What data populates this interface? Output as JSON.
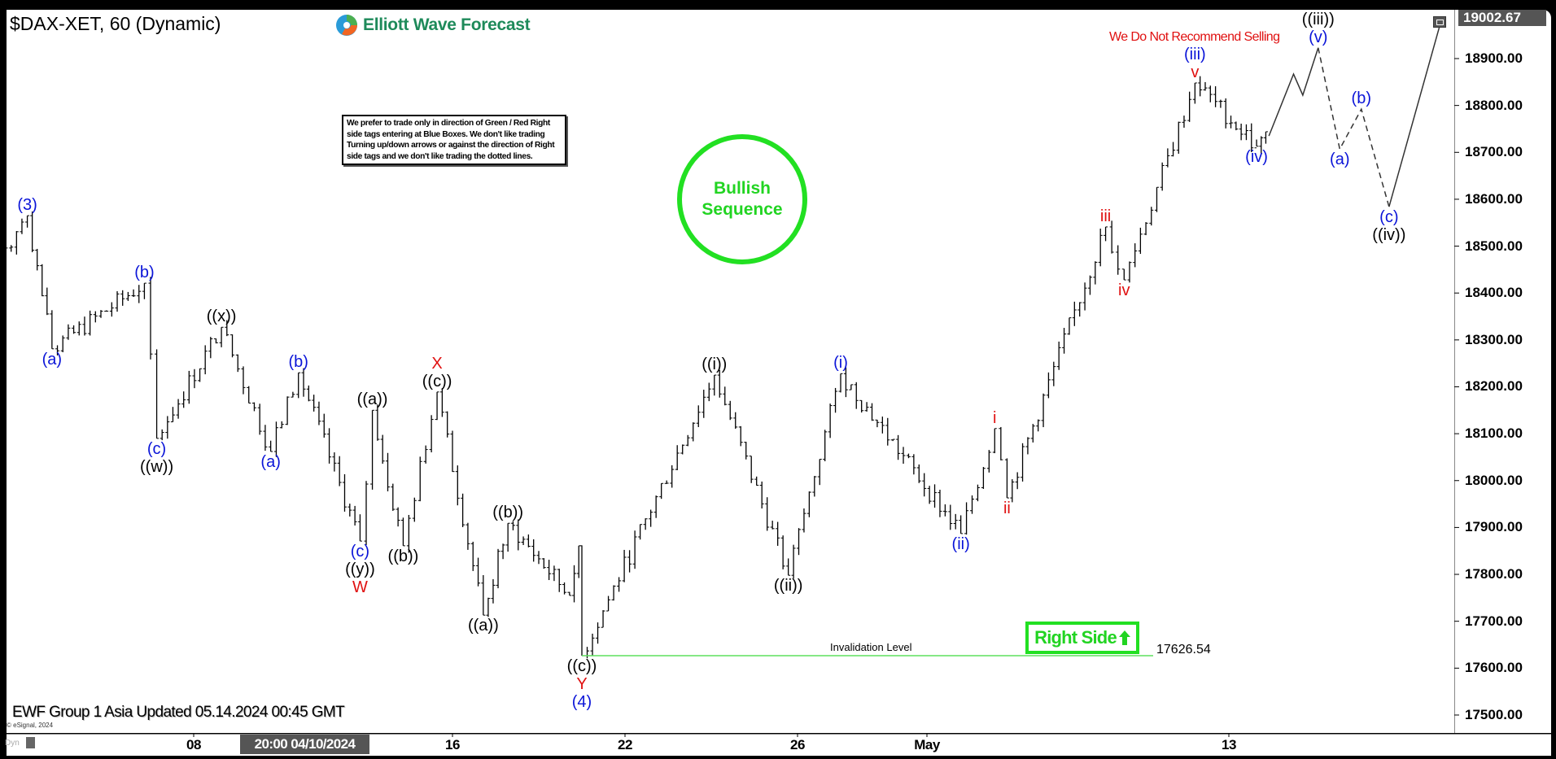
{
  "header": {
    "symbol_title": "$DAX-XET, 60 (Dynamic)",
    "logo_text": "Elliott Wave Forecast",
    "disclaimer": "We prefer to trade only in direction of Green / Red Right side tags entering at Blue Boxes. We don't like trading Turning up/down arrows or against the direction of Right side tags and we don't like trading the dotted lines.",
    "window_icon": "restore-window-icon"
  },
  "annotations": {
    "bullish_sequence": "Bullish Sequence",
    "no_selling": "We Do Not Recommend Selling",
    "right_side": "Right Side",
    "right_side_icon": "arrow-up-icon",
    "invalidation_label": "Invalidation Level",
    "invalidation_value": "17626.54",
    "updated": "EWF Group 1 Asia Updated 05.14.2024 00:45 GMT",
    "copyright": "© eSignal, 2024",
    "dyn": "Dyn"
  },
  "colors": {
    "blue": "#0a14d8",
    "red": "#e01010",
    "black": "#000000",
    "green": "#22e022",
    "brand": "#1e8a5a"
  },
  "chart_data": {
    "type": "ohlc-bar",
    "title": "$DAX-XET, 60 (Dynamic)",
    "ylim": [
      17430,
      19002.67
    ],
    "last_price_label": "19002.67",
    "yticks": [
      "18900.00",
      "18800.00",
      "18700.00",
      "18600.00",
      "18500.00",
      "18400.00",
      "18300.00",
      "18200.00",
      "18100.00",
      "18000.00",
      "17900.00",
      "17800.00",
      "17700.00",
      "17600.00",
      "17500.00"
    ],
    "xticks": [
      {
        "label": "08",
        "date": "04-08"
      },
      {
        "label": "16",
        "date": "04-16"
      },
      {
        "label": "22",
        "date": "04-22"
      },
      {
        "label": "26",
        "date": "04-26"
      },
      {
        "label": "May",
        "date": "05-02"
      },
      {
        "label": "13",
        "date": "05-13"
      }
    ],
    "cursor_label": "20:00 04/10/2024",
    "invalidation_level": 17626.54,
    "price_pivots": [
      [
        "03-28 17:00",
        18496
      ],
      [
        "04-02 10:00",
        18565
      ],
      [
        "04-02 18:00",
        18281
      ],
      [
        "04-04 20:00",
        18421
      ],
      [
        "04-05 10:00",
        18090
      ],
      [
        "04-08 17:00",
        18327
      ],
      [
        "04-09 19:00",
        18062
      ],
      [
        "04-10 14:00",
        18230
      ],
      [
        "04-11 20:00",
        17871
      ],
      [
        "04-12 10:00",
        18150
      ],
      [
        "04-12 20:00",
        17861
      ],
      [
        "04-15 17:00",
        18189
      ],
      [
        "04-16 18:00",
        17713
      ],
      [
        "04-17 12:00",
        17909
      ],
      [
        "04-18 18:00",
        17755
      ],
      [
        "04-18 21:00",
        17861
      ],
      [
        "04-19 08:00",
        17626.54
      ],
      [
        "04-24 09:00",
        18225
      ],
      [
        "04-25 19:00",
        17798
      ],
      [
        "04-29 08:00",
        18228
      ],
      [
        "05-02 19:00",
        17887
      ],
      [
        "05-03 16:00",
        18111
      ],
      [
        "05-03 20:00",
        17963
      ],
      [
        "05-08 10:00",
        18541
      ],
      [
        "05-08 16:00",
        18428
      ],
      [
        "05-10 11:00",
        18848
      ],
      [
        "05-13 17:00",
        18713
      ],
      [
        "05-13 20:00",
        18744
      ]
    ],
    "projection_solid": [
      [
        "05-13 21:00",
        18735
      ],
      [
        "05-14 15:00",
        18867
      ],
      [
        "05-14 18:00",
        18822
      ],
      [
        "05-15 09:00",
        18923
      ]
    ],
    "projection_dashed": [
      [
        "05-15 09:00",
        18923
      ],
      [
        "05-15 16:00",
        18707
      ],
      [
        "05-16 09:00",
        18792
      ],
      [
        "05-16 18:00",
        18584
      ]
    ],
    "projection_final": [
      [
        "05-16 18:00",
        18584
      ],
      [
        "05-17 21:00",
        18983
      ]
    ],
    "wave_labels": [
      {
        "at": "04-02 10:00",
        "price": 18565,
        "place": "above",
        "lines": [
          [
            "(3)",
            "blue"
          ]
        ]
      },
      {
        "at": "04-02 18:00",
        "price": 18281,
        "place": "below",
        "lines": [
          [
            "(a)",
            "blue"
          ]
        ]
      },
      {
        "at": "04-04 20:00",
        "price": 18421,
        "place": "above",
        "lines": [
          [
            "(b)",
            "blue"
          ]
        ]
      },
      {
        "at": "04-05 10:00",
        "price": 18090,
        "place": "below",
        "lines": [
          [
            "(c)",
            "blue"
          ],
          [
            "((w))",
            "black"
          ]
        ]
      },
      {
        "at": "04-08 17:00",
        "price": 18327,
        "place": "above",
        "lines": [
          [
            "((x))",
            "black"
          ]
        ]
      },
      {
        "at": "04-09 19:00",
        "price": 18062,
        "place": "below",
        "lines": [
          [
            "(a)",
            "blue"
          ]
        ]
      },
      {
        "at": "04-10 14:00",
        "price": 18230,
        "place": "above",
        "lines": [
          [
            "(b)",
            "blue"
          ]
        ]
      },
      {
        "at": "04-11 20:00",
        "price": 17871,
        "place": "below",
        "lines": [
          [
            "(c)",
            "blue"
          ],
          [
            "((y))",
            "black"
          ],
          [
            "W",
            "red"
          ]
        ]
      },
      {
        "at": "04-12 10:00",
        "price": 18150,
        "place": "above",
        "lines": [
          [
            "((a))",
            "black"
          ]
        ]
      },
      {
        "at": "04-12 20:00",
        "price": 17861,
        "place": "below",
        "lines": [
          [
            "((b))",
            "black"
          ]
        ]
      },
      {
        "at": "04-15 17:00",
        "price": 18189,
        "place": "above",
        "lines": [
          [
            "((c))",
            "black"
          ],
          [
            "X",
            "red"
          ]
        ]
      },
      {
        "at": "04-16 18:00",
        "price": 17713,
        "place": "below",
        "lines": [
          [
            "((a))",
            "black"
          ]
        ]
      },
      {
        "at": "04-17 12:00",
        "price": 17909,
        "place": "above",
        "lines": [
          [
            "((b))",
            "black"
          ]
        ]
      },
      {
        "at": "04-19 08:00",
        "price": 17626.54,
        "place": "below",
        "lines": [
          [
            "((c))",
            "black"
          ],
          [
            "Y",
            "red"
          ],
          [
            "(4)",
            "blue"
          ]
        ]
      },
      {
        "at": "04-24 09:00",
        "price": 18225,
        "place": "above",
        "lines": [
          [
            "((i))",
            "black"
          ]
        ]
      },
      {
        "at": "04-25 19:00",
        "price": 17798,
        "place": "below",
        "lines": [
          [
            "((ii))",
            "black"
          ]
        ]
      },
      {
        "at": "04-29 08:00",
        "price": 18228,
        "place": "above",
        "lines": [
          [
            "(i)",
            "blue"
          ]
        ]
      },
      {
        "at": "05-02 19:00",
        "price": 17887,
        "place": "below",
        "lines": [
          [
            "(ii)",
            "blue"
          ]
        ]
      },
      {
        "at": "05-03 16:00",
        "price": 18111,
        "place": "above",
        "lines": [
          [
            "i",
            "red"
          ]
        ]
      },
      {
        "at": "05-03 20:00",
        "price": 17963,
        "place": "below",
        "lines": [
          [
            "ii",
            "red"
          ]
        ]
      },
      {
        "at": "05-08 10:00",
        "price": 18541,
        "place": "above",
        "lines": [
          [
            "iii",
            "red"
          ]
        ]
      },
      {
        "at": "05-08 16:00",
        "price": 18428,
        "place": "below",
        "lines": [
          [
            "iv",
            "red"
          ]
        ]
      },
      {
        "at": "05-10 11:00",
        "price": 18848,
        "place": "above",
        "lines": [
          [
            "v",
            "red"
          ],
          [
            "(iii)",
            "blue"
          ]
        ]
      },
      {
        "at": "05-13 17:00",
        "price": 18713,
        "place": "below",
        "lines": [
          [
            "(iv)",
            "blue"
          ]
        ]
      },
      {
        "at": "05-15 09:00",
        "price": 18923,
        "place": "above",
        "lines": [
          [
            "(v)",
            "blue"
          ],
          [
            "((iii))",
            "black"
          ]
        ]
      },
      {
        "at": "05-15 16:00",
        "price": 18707,
        "place": "below",
        "lines": [
          [
            "(a)",
            "blue"
          ]
        ]
      },
      {
        "at": "05-16 09:00",
        "price": 18792,
        "place": "above",
        "lines": [
          [
            "(b)",
            "blue"
          ]
        ]
      },
      {
        "at": "05-16 18:00",
        "price": 18584,
        "place": "below",
        "lines": [
          [
            "(c)",
            "blue"
          ],
          [
            "((iv))",
            "black"
          ]
        ]
      }
    ]
  }
}
